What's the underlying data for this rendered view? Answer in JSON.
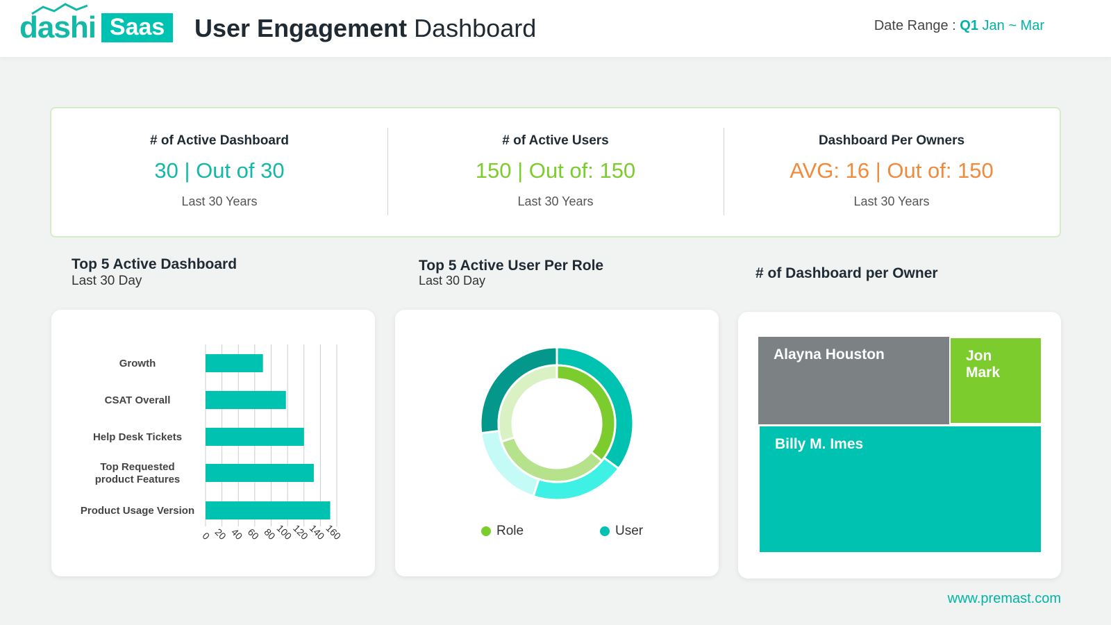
{
  "header": {
    "logo_text": "dashi",
    "logo_badge": "Saas",
    "title_bold": "User Engagement",
    "title_rest": "Dashboard",
    "date_range_label": "Date Range :",
    "date_range_quarter": "Q1",
    "date_range_months": "Jan ~ Mar"
  },
  "kpis": [
    {
      "title": "# of Active Dashboard",
      "value": "30 | Out of 30",
      "sub": "Last 30 Years",
      "color": "#14b8a6"
    },
    {
      "title": "# of Active Users",
      "value": "150 | Out of: 150",
      "sub": "Last 30 Years",
      "color": "#7ccc2e"
    },
    {
      "title": "Dashboard Per Owners",
      "value": "AVG: 16 | Out of: 150",
      "sub": "Last 30 Years",
      "color": "#f08a3c"
    }
  ],
  "sections": {
    "bar": {
      "title": "Top 5 Active Dashboard",
      "sub": "Last 30 Day"
    },
    "donut": {
      "title": "Top 5 Active User Per Role",
      "sub": "Last 30 Day"
    },
    "treemap": {
      "title": "# of Dashboard per Owner"
    }
  },
  "chart_data": [
    {
      "type": "bar",
      "orientation": "horizontal",
      "categories": [
        "Growth",
        "CSAT Overall",
        "Help Desk Tickets",
        "Top Requested product Features",
        "Product Usage Version"
      ],
      "category_lines": [
        [
          "Growth"
        ],
        [
          "CSAT Overall"
        ],
        [
          "Help Desk Tickets"
        ],
        [
          "Top Requested",
          "product Features"
        ],
        [
          "Product Usage Version"
        ]
      ],
      "values": [
        70,
        98,
        120,
        132,
        152
      ],
      "xticks": [
        "0",
        "20",
        "40",
        "60",
        "80",
        "100",
        "120",
        "140",
        "160"
      ],
      "xlim": [
        0,
        160
      ],
      "grid": true,
      "color": "#00c2b0"
    },
    {
      "type": "pie",
      "style": "nested-donut",
      "series": [
        {
          "name": "User",
          "values": [
            35,
            20,
            18,
            27
          ],
          "colors": [
            "#00c2b0",
            "#3ff0e4",
            "#c5fbf6",
            "#04978b"
          ]
        },
        {
          "name": "Role",
          "values": [
            36,
            34,
            30
          ],
          "colors": [
            "#7ccc2e",
            "#b5e28a",
            "#d9f1c3"
          ]
        }
      ],
      "legend": [
        "Role",
        "User"
      ],
      "legend_colors": [
        "#7ccc2e",
        "#00c2b0"
      ]
    },
    {
      "type": "treemap",
      "items": [
        {
          "name": "Alayna Houston",
          "color": "#7c8184"
        },
        {
          "name": "Jon Mark",
          "color": "#7ccc2e"
        },
        {
          "name": "Billy M. Imes",
          "color": "#00c2b0"
        }
      ]
    }
  ],
  "footer": {
    "url": "www.premast.com"
  }
}
